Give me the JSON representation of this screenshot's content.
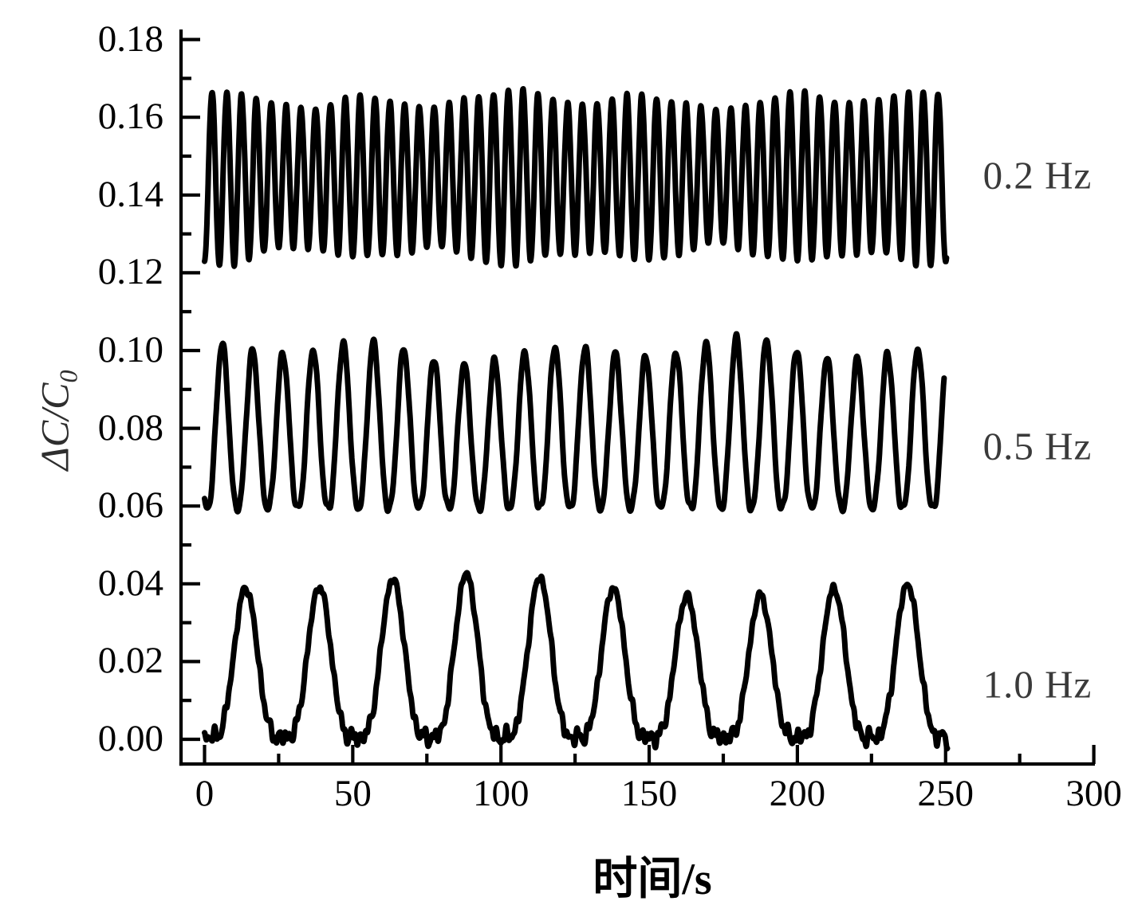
{
  "colors": {
    "background": "#ffffff",
    "axis": "#000000",
    "trace": "#000000",
    "tick_label": "#000000",
    "annotation": "#3a3a3a"
  },
  "chart_data": {
    "type": "line",
    "title": "",
    "xlabel": "时间/s",
    "ylabel": "ΔC/C₀",
    "ylabel_main": "ΔC/C",
    "ylabel_sub": "0",
    "xlim": [
      0,
      300
    ],
    "ylim": [
      0.0,
      0.18
    ],
    "grid": false,
    "legend_position": "inline-right-annotations",
    "x_major_ticks": [
      0,
      50,
      100,
      150,
      200,
      250,
      300
    ],
    "x_minor_ticks": [
      25,
      75,
      125,
      175,
      225,
      275
    ],
    "x_tick_labels": [
      "0",
      "50",
      "100",
      "150",
      "200",
      "250",
      "300"
    ],
    "y_major_ticks": [
      0.0,
      0.02,
      0.04,
      0.06,
      0.08,
      0.1,
      0.12,
      0.14,
      0.16,
      0.18
    ],
    "y_minor_ticks": [
      0.01,
      0.03,
      0.05,
      0.07,
      0.09,
      0.11,
      0.13,
      0.15,
      0.17
    ],
    "y_tick_labels": [
      "0.00",
      "0.02",
      "0.04",
      "0.06",
      "0.08",
      "0.10",
      "0.12",
      "0.14",
      "0.16",
      "0.18"
    ],
    "annotations": [
      {
        "text": "0.2 Hz",
        "x_t": 281,
        "y_value": 0.145
      },
      {
        "text": "0.5 Hz",
        "x_t": 281,
        "y_value": 0.0754
      },
      {
        "text": "1.0 Hz",
        "x_t": 281,
        "y_value": 0.0141
      }
    ],
    "series": [
      {
        "name": "0.2 Hz",
        "x_range_s": [
          0,
          250.3
        ],
        "y_min": 0.122,
        "y_max": 0.167,
        "cycles": 50,
        "waveform": {
          "type": "sine",
          "period": 5.0,
          "peak_t": 2.5,
          "mean": 0.1445,
          "amplitude": 0.02,
          "amp_mod": [
            {
              "a": 0.08,
              "w": 0.131,
              "p": 0.8
            },
            {
              "a": 0.05,
              "w": 0.053,
              "p": 2.0
            }
          ],
          "noise": [
            {
              "a": 0.0005,
              "w": 2.3,
              "p": 0.3
            },
            {
              "a": 0.0004,
              "w": 4.1,
              "p": 1.1
            }
          ]
        }
      },
      {
        "name": "0.5 Hz",
        "x_range_s": [
          0,
          249.5
        ],
        "y_min": 0.059,
        "y_max": 0.102,
        "cycles": 24.5,
        "waveform": {
          "type": "pulse",
          "period": 10.2,
          "t0": 0.9,
          "base": 0.0595,
          "amplitude": 0.0405,
          "exponent": 1.25,
          "noise_damp": 0.0,
          "amp_mod": [
            {
              "a": 0.05,
              "w": 0.1,
              "p": 2.2
            },
            {
              "a": 0.035,
              "w": 0.041,
              "p": 0.7
            }
          ],
          "noise": [
            {
              "a": 0.0006,
              "w": 2.0,
              "p": 0.9
            },
            {
              "a": 0.0004,
              "w": 3.6,
              "p": 2.4
            }
          ]
        }
      },
      {
        "name": "1.0 Hz",
        "x_range_s": [
          0,
          250.6
        ],
        "y_min": -0.003,
        "y_max": 0.042,
        "cycles": 10,
        "waveform": {
          "type": "pulse",
          "period": 24.8,
          "t0": 1.5,
          "base": 0.0005,
          "amplitude": 0.039,
          "exponent": 2.1,
          "noise_damp": 0.55,
          "amp_mod": [
            {
              "a": 0.05,
              "w": 0.045,
              "p": 3.5
            },
            {
              "a": 0.04,
              "w": 0.019,
              "p": 0.5
            }
          ],
          "noise": [
            {
              "a": 0.0011,
              "w": 2.05,
              "p": 0.4
            },
            {
              "a": 0.0009,
              "w": 3.7,
              "p": 1.7
            },
            {
              "a": 0.0007,
              "w": 1.33,
              "p": 4.0
            },
            {
              "a": 0.0005,
              "w": 5.3,
              "p": 2.2
            }
          ]
        }
      }
    ]
  }
}
